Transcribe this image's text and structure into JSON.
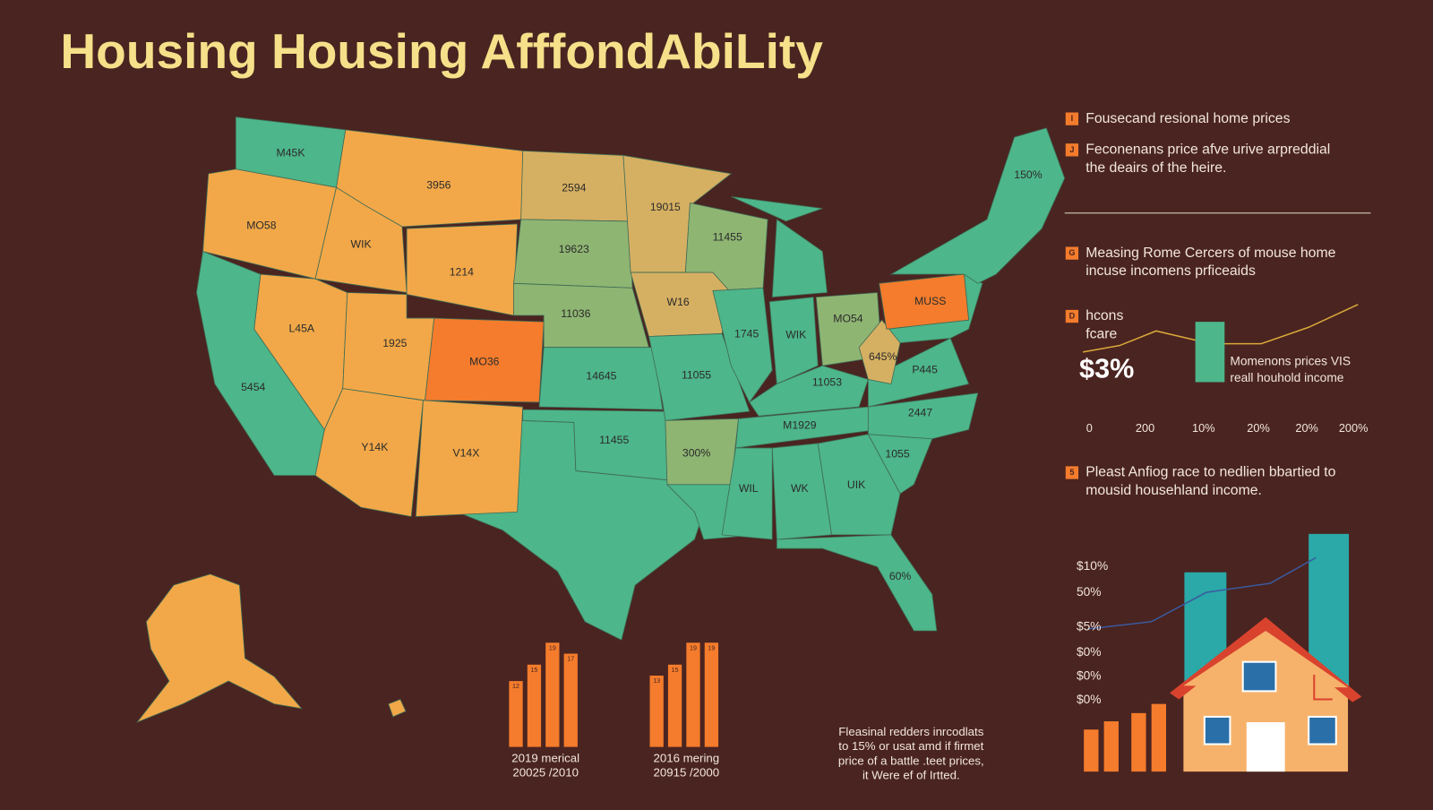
{
  "header": {
    "title": "Housing Housing AfffondAbiLity"
  },
  "map": {
    "labels": [
      "M45K",
      "MO58",
      "3956",
      "WIK",
      "1214",
      "2594",
      "19623",
      "11036",
      "19015",
      "11455",
      "W16",
      "L45A",
      "1925",
      "MO36",
      "5454",
      "Y14K",
      "V14X",
      "14645",
      "11455",
      "11055",
      "300%",
      "1745",
      "WIK",
      "MO54",
      "11053",
      "M1929",
      "WIL",
      "WK",
      "UIK",
      "60%",
      "1055",
      "2447",
      "P445",
      "645%",
      "MUSS",
      "150%"
    ]
  },
  "panel": {
    "items": [
      {
        "marker": "I",
        "lines": [
          "Fousecand resional home prices"
        ]
      },
      {
        "marker": "J",
        "lines": [
          "Feconenans price afve urive arpreddial",
          "the deairs of the heire."
        ]
      },
      {
        "marker": "G",
        "lines": [
          "Measing Rome Cercers of mouse home",
          "incuse incomens prficeaids"
        ]
      },
      {
        "marker": "D",
        "lines": [
          "hcons",
          "fcare"
        ]
      },
      {
        "marker": "5",
        "lines": [
          "Pleast Anfiog race to nedlien bbartied to",
          "mousid househland income."
        ]
      }
    ],
    "big_value": "$3%",
    "inset_caption": [
      "Momenons prices VIS",
      "reall houhold income"
    ],
    "inset_axis": [
      "0",
      "200",
      "10%",
      "20%",
      "20%",
      "200%"
    ],
    "lower_axis": [
      "$10%",
      "50%",
      "$5%",
      "$0%",
      "$0%",
      "$0%"
    ]
  },
  "bar_groups": [
    {
      "values": [
        12,
        15,
        19,
        17
      ],
      "lines": [
        "2019 merical",
        "20025 /2010"
      ]
    },
    {
      "values": [
        13,
        15,
        19,
        19
      ],
      "lines": [
        "2016 mering",
        "20915 /2000"
      ]
    }
  ],
  "footnote": {
    "lines": [
      "Fleasinal redders inrcodlats",
      "to 15% or usat amd if firmet",
      "price of a battle .teet prices,",
      "it Were ef of Irtted."
    ]
  }
}
